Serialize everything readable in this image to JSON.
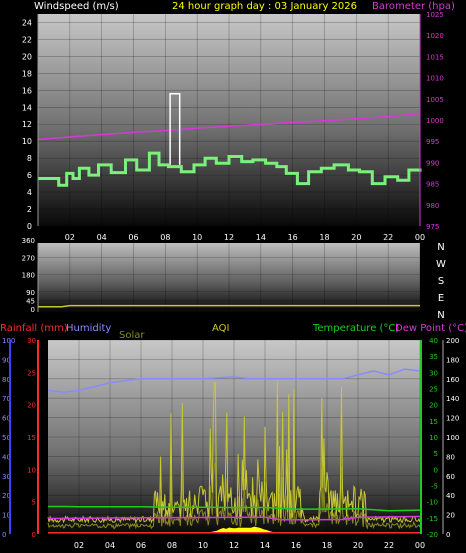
{
  "colors": {
    "wind": "#7cf07c",
    "gust": "#ffffff",
    "baro": "#d63ad6",
    "dir": "#c8c832",
    "rain": "#ff2a2a",
    "humidity": "#8a8aff",
    "solar": "#8a8a20",
    "aqi": "#c8c832",
    "temp": "#1ecc1e",
    "dew": "#d63ad6",
    "title": "#ffff00",
    "text": "#ffffff"
  },
  "x_ticks": [
    "02",
    "04",
    "06",
    "08",
    "10",
    "12",
    "14",
    "16",
    "18",
    "20",
    "22",
    "00"
  ],
  "chart_data": [
    {
      "type": "line",
      "title": "24 hour graph day : 03 January 2026",
      "ylabel": "Windspeed (m/s)",
      "y2label": "Barometer (hpa)",
      "ylim": [
        0,
        25
      ],
      "y2lim": [
        975,
        1025
      ],
      "yticks": [
        "0",
        "2",
        "4",
        "6",
        "8",
        "10",
        "12",
        "14",
        "16",
        "18",
        "20",
        "22",
        "24"
      ],
      "y2ticks": [
        "975",
        "980",
        "985",
        "990",
        "995",
        "1000",
        "1005",
        "1010",
        "1015",
        "1020",
        "1025"
      ],
      "grid": true,
      "series": [
        {
          "x": [
            0,
            1,
            1.3,
            1.8,
            2.2,
            2.6,
            3.2,
            3.8,
            4.6,
            5.5,
            6.2,
            7,
            7.6,
            8.2,
            9,
            9.8,
            10.5,
            11.2,
            12,
            12.8,
            13.5,
            14.3,
            15,
            15.6,
            16.3,
            17,
            17.8,
            18.6,
            19.5,
            20.2,
            21,
            21.8,
            22.6,
            23.3,
            24
          ],
          "y": [
            5.6,
            5.6,
            4.8,
            6.2,
            5.6,
            6.8,
            6.0,
            7.2,
            6.3,
            7.8,
            6.6,
            8.6,
            7.2,
            7.0,
            6.4,
            7.2,
            8.0,
            7.4,
            8.2,
            7.6,
            7.8,
            7.4,
            7.0,
            6.2,
            5.0,
            6.4,
            6.8,
            7.2,
            6.6,
            6.4,
            5.0,
            5.8,
            5.4,
            6.6,
            6.4
          ]
        },
        {
          "x": [
            8.3,
            8.3,
            8.9,
            8.9
          ],
          "y": [
            7.2,
            15.6,
            15.6,
            7.2
          ]
        },
        {
          "x": [
            0,
            3,
            6,
            8,
            10,
            12,
            14,
            16,
            18,
            20,
            22,
            24
          ],
          "y": [
            995.4,
            996.3,
            997.1,
            997.5,
            998.1,
            998.5,
            999.0,
            999.4,
            999.8,
            1000.3,
            1000.8,
            1001.5
          ]
        }
      ]
    },
    {
      "type": "line",
      "ylabel": "",
      "ylim": [
        0,
        360
      ],
      "yticks": [
        "0",
        "45",
        "90",
        "180",
        "270",
        "360"
      ],
      "y2ticks": [
        "N",
        "W",
        "S",
        "E",
        "N"
      ],
      "series": [
        {
          "x": [
            0,
            1.5,
            2,
            24
          ],
          "y": [
            12,
            12,
            18,
            18
          ]
        }
      ]
    },
    {
      "type": "line",
      "labels": {
        "rain": "Rainfall (mm)",
        "humidity": "Humidity",
        "solar": "Solar",
        "aqi": "AQI",
        "temp": "Temperature (°C)",
        "dew": "Dew Point (°C)"
      },
      "humidity_ticks": [
        "0",
        "10",
        "20",
        "30",
        "40",
        "50",
        "60",
        "70",
        "80",
        "90",
        "100"
      ],
      "rain_ticks": [
        "0",
        "5",
        "10",
        "15",
        "20",
        "25",
        "30"
      ],
      "temp_ticks": [
        "-20",
        "-15",
        "-10",
        "-5",
        "0",
        "5",
        "10",
        "15",
        "20",
        "25",
        "30",
        "35",
        "40"
      ],
      "aqi_ticks": [
        "0",
        "20",
        "40",
        "60",
        "80",
        "100",
        "120",
        "140",
        "160",
        "180",
        "200"
      ],
      "humidity_ylim": [
        0,
        100
      ],
      "rain_ylim": [
        0,
        30
      ],
      "temp_ylim": [
        -20,
        40
      ],
      "aqi_ylim": [
        0,
        200
      ],
      "series": [
        {
          "name": "Humidity",
          "x": [
            0,
            1,
            2,
            3,
            4,
            5,
            6,
            7,
            8,
            10,
            12,
            13,
            14,
            16,
            18,
            19,
            20,
            21,
            22,
            23,
            24
          ],
          "y": [
            74,
            73,
            74,
            76,
            78,
            79,
            80,
            80,
            80,
            80,
            81,
            80,
            80,
            80,
            80,
            80,
            82,
            84,
            82,
            85,
            84
          ]
        },
        {
          "name": "Temperature",
          "x": [
            0,
            1,
            2,
            6,
            8,
            10,
            12,
            14,
            16,
            18,
            20,
            22,
            24
          ],
          "y": [
            -11.5,
            -11.5,
            -11.6,
            -11.6,
            -11.7,
            -11.7,
            -11.8,
            -11.8,
            -12.3,
            -12.3,
            -12.2,
            -12.8,
            -12.6
          ]
        },
        {
          "name": "Dew Point",
          "x": [
            0,
            2,
            6,
            10,
            14,
            15,
            17,
            19,
            20,
            22,
            24
          ],
          "y": [
            -15.2,
            -15.1,
            -15.0,
            -14.9,
            -14.8,
            -15.6,
            -15.6,
            -15.5,
            -14.8,
            -14.7,
            -14.6
          ]
        },
        {
          "name": "Rainfall",
          "x": [
            0,
            4,
            4.6,
            24
          ],
          "y": [
            0.2,
            0.2,
            0.2,
            0.2
          ]
        }
      ]
    }
  ]
}
